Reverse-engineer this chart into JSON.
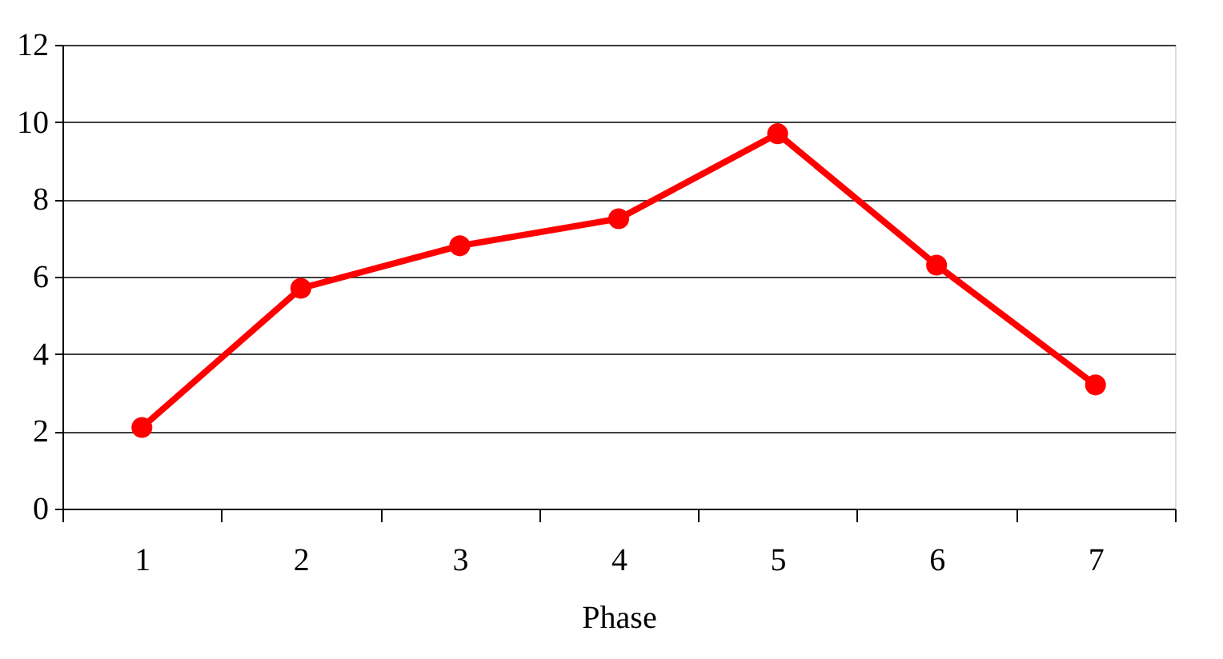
{
  "chart_data": {
    "type": "line",
    "xlabel": "Phase",
    "categories": [
      "1",
      "2",
      "3",
      "4",
      "5",
      "6",
      "7"
    ],
    "series": [
      {
        "color": "#ff0000",
        "values": [
          2.1,
          5.7,
          6.8,
          7.5,
          9.7,
          6.3,
          3.2
        ]
      }
    ],
    "ylim": [
      0,
      12
    ],
    "yticks": [
      0,
      2,
      4,
      6,
      8,
      10,
      12
    ],
    "grid": "y",
    "marker": "circle",
    "line_style": "solid"
  }
}
